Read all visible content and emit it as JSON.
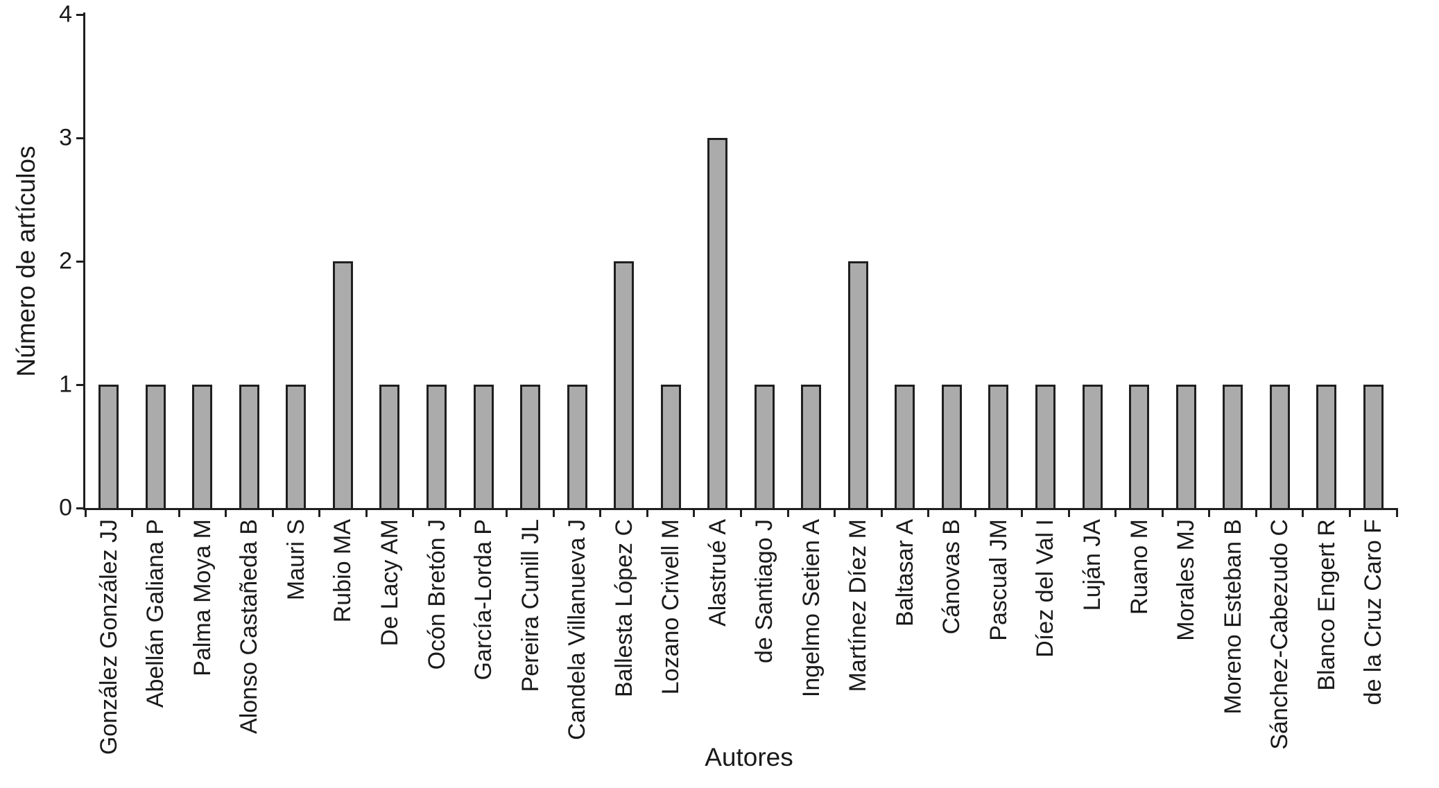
{
  "chart_data": {
    "type": "bar",
    "title": "",
    "xlabel": "Autores",
    "ylabel": "Número de artículos",
    "categories": [
      "González González JJ",
      "Abellán Galiana P",
      "Palma Moya M",
      "Alonso Castañeda B",
      "Mauri S",
      "Rubio MA",
      "De Lacy AM",
      "Ocón Bretón J",
      "García-Lorda P",
      "Pereira Cunill JL",
      "Candela Villanueva J",
      "Ballesta López C",
      "Lozano Crivell M",
      "Alastrué A",
      "de Santiago J",
      "Ingelmo Setien A",
      "Martínez Díez M",
      "Baltasar A",
      "Cánovas B",
      "Pascual JM",
      "Díez del Val I",
      "Luján JA",
      "Ruano M",
      "Morales MJ",
      "Moreno Esteban B",
      "Sánchez-Cabezudo C",
      "Blanco Engert R",
      "de la Cruz Caro F"
    ],
    "values": [
      1,
      1,
      1,
      1,
      1,
      2,
      1,
      1,
      1,
      1,
      1,
      2,
      1,
      3,
      1,
      1,
      2,
      1,
      1,
      1,
      1,
      1,
      1,
      1,
      1,
      1,
      1,
      1
    ],
    "ylim": [
      0,
      4
    ],
    "yticks": [
      0,
      1,
      2,
      3,
      4
    ],
    "grid": false,
    "legend_position": "none",
    "bar_color": "#ababab",
    "bar_border_color": "#1f1f1f",
    "axis_color": "#1f1f1f",
    "background_color": "#ffffff"
  }
}
